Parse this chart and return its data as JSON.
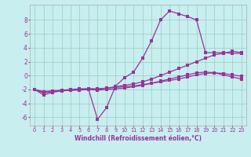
{
  "xlabel": "Windchill (Refroidissement éolien,°C)",
  "bg_color": "#c8eef0",
  "line_color": "#993399",
  "grid_color": "#99ccbb",
  "x_ticks": [
    0,
    1,
    2,
    3,
    4,
    5,
    6,
    7,
    8,
    9,
    10,
    11,
    12,
    13,
    14,
    15,
    16,
    17,
    18,
    19,
    20,
    21,
    22,
    23
  ],
  "y_ticks": [
    -6,
    -4,
    -2,
    0,
    2,
    4,
    6,
    8
  ],
  "ylim": [
    -7.2,
    10.2
  ],
  "xlim": [
    -0.5,
    23.5
  ],
  "line1_x": [
    0,
    1,
    2,
    3,
    4,
    5,
    6,
    7,
    8,
    9,
    10,
    11,
    12,
    13,
    14,
    15,
    16,
    17,
    18,
    19,
    20,
    21,
    22,
    23
  ],
  "line1_y": [
    -2.0,
    -2.8,
    -2.4,
    -2.2,
    -2.1,
    -2.1,
    -2.0,
    -6.3,
    -4.6,
    -1.5,
    -0.3,
    0.5,
    2.5,
    5.0,
    8.0,
    9.3,
    8.9,
    8.5,
    8.0,
    3.3,
    3.3,
    3.3,
    3.2,
    3.2
  ],
  "line2_x": [
    0,
    1,
    2,
    3,
    4,
    5,
    6,
    7,
    8,
    9,
    10,
    11,
    12,
    13,
    14,
    15,
    16,
    17,
    18,
    19,
    20,
    21,
    22,
    23
  ],
  "line2_y": [
    -2.0,
    -2.5,
    -2.3,
    -2.2,
    -2.1,
    -2.0,
    -1.9,
    -2.0,
    -1.8,
    -1.6,
    -1.4,
    -1.2,
    -0.9,
    -0.5,
    0.0,
    0.5,
    1.0,
    1.5,
    2.0,
    2.5,
    3.0,
    3.2,
    3.5,
    3.3
  ],
  "line3_x": [
    0,
    1,
    2,
    3,
    4,
    5,
    6,
    7,
    8,
    9,
    10,
    11,
    12,
    13,
    14,
    15,
    16,
    17,
    18,
    19,
    20,
    21,
    22,
    23
  ],
  "line3_y": [
    -2.0,
    -2.4,
    -2.3,
    -2.2,
    -2.1,
    -2.0,
    -2.0,
    -2.1,
    -2.0,
    -1.9,
    -1.8,
    -1.6,
    -1.4,
    -1.1,
    -0.8,
    -0.5,
    -0.2,
    0.1,
    0.4,
    0.5,
    0.4,
    0.1,
    -0.2,
    -0.5
  ],
  "line4_x": [
    0,
    1,
    2,
    3,
    4,
    5,
    6,
    7,
    8,
    9,
    10,
    11,
    12,
    13,
    14,
    15,
    16,
    17,
    18,
    19,
    20,
    21,
    22,
    23
  ],
  "line4_y": [
    -2.0,
    -2.3,
    -2.2,
    -2.1,
    -2.0,
    -1.9,
    -1.9,
    -1.9,
    -1.8,
    -1.7,
    -1.6,
    -1.5,
    -1.3,
    -1.1,
    -0.9,
    -0.7,
    -0.5,
    -0.2,
    0.1,
    0.3,
    0.4,
    0.3,
    0.1,
    -0.1
  ]
}
